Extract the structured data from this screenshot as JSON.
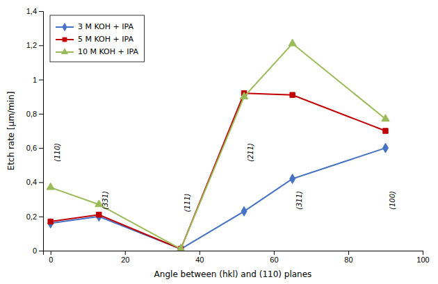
{
  "chart_data": {
    "type": "line",
    "x": [
      0,
      13,
      35,
      52,
      65,
      90
    ],
    "series": [
      {
        "name": "3 M KOH + IPA",
        "color": "#4472C4",
        "marker": "diamond",
        "values": [
          0.16,
          0.2,
          0.01,
          0.23,
          0.42,
          0.6
        ]
      },
      {
        "name": "5 M KOH + IPA",
        "color": "#C00000",
        "marker": "square",
        "values": [
          0.17,
          0.21,
          0.01,
          0.92,
          0.91,
          0.7
        ]
      },
      {
        "name": "10 M KOH + IPA",
        "color": "#9BBB59",
        "marker": "triangle",
        "values": [
          0.37,
          0.27,
          0.01,
          0.9,
          1.21,
          0.77
        ]
      }
    ],
    "annotations": [
      "(110)",
      "(331)",
      "(111)",
      "(211)",
      "(311)",
      "(100)"
    ],
    "xlabel": "Angle between (hkl) and (110) planes",
    "ylabel": "Etch rate [μm/min]",
    "xlim": [
      -2,
      100
    ],
    "ylim": [
      0,
      1.4
    ],
    "xticks": [
      0,
      20,
      40,
      60,
      80,
      100
    ],
    "yticks": [
      0,
      {
        "value": 0.2,
        "label": "0,2"
      },
      {
        "value": 0.4,
        "label": "0,4"
      },
      {
        "value": 0.6,
        "label": "0,6"
      },
      {
        "value": 0.8,
        "label": "0,8"
      },
      1,
      {
        "value": 1.2,
        "label": "1,2"
      },
      {
        "value": 1.4,
        "label": "1,4"
      }
    ],
    "grid": false,
    "legend": "upper left"
  }
}
